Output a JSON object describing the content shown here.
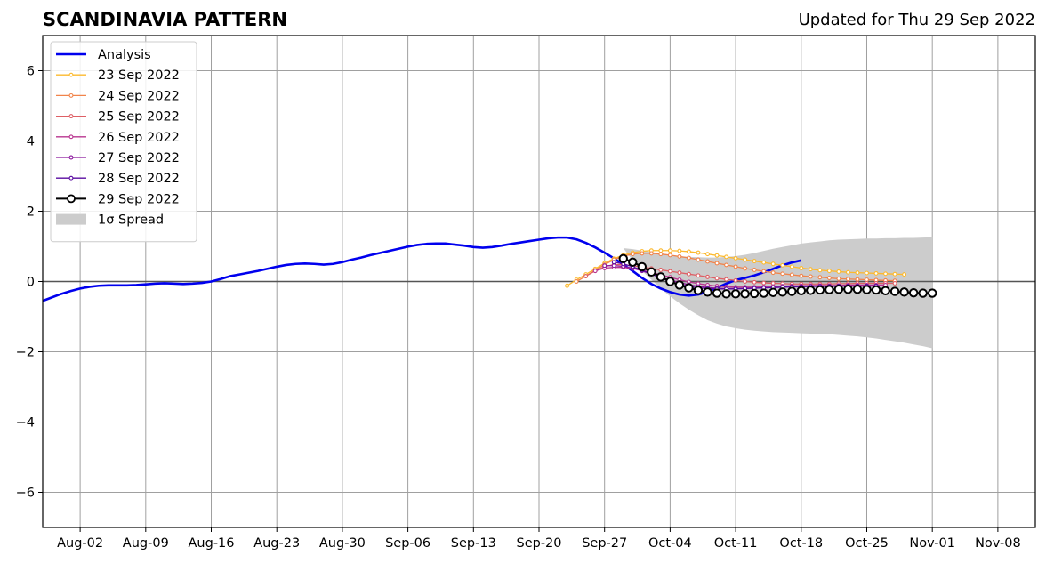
{
  "header": {
    "title": "SCANDINAVIA PATTERN",
    "updated": "Updated for Thu 29 Sep 2022"
  },
  "chart_data": {
    "type": "line",
    "title": "SCANDINAVIA PATTERN",
    "subtitle": "Updated for Thu 29 Sep 2022",
    "xlabel": "",
    "ylabel": "",
    "x_axis": {
      "min": "2022-07-29",
      "max": "2022-11-12",
      "ticks": [
        {
          "date": "2022-08-02",
          "label": "Aug-02"
        },
        {
          "date": "2022-08-09",
          "label": "Aug-09"
        },
        {
          "date": "2022-08-16",
          "label": "Aug-16"
        },
        {
          "date": "2022-08-23",
          "label": "Aug-23"
        },
        {
          "date": "2022-08-30",
          "label": "Aug-30"
        },
        {
          "date": "2022-09-06",
          "label": "Sep-06"
        },
        {
          "date": "2022-09-13",
          "label": "Sep-13"
        },
        {
          "date": "2022-09-20",
          "label": "Sep-20"
        },
        {
          "date": "2022-09-27",
          "label": "Sep-27"
        },
        {
          "date": "2022-10-04",
          "label": "Oct-04"
        },
        {
          "date": "2022-10-11",
          "label": "Oct-11"
        },
        {
          "date": "2022-10-18",
          "label": "Oct-18"
        },
        {
          "date": "2022-10-25",
          "label": "Oct-25"
        },
        {
          "date": "2022-11-01",
          "label": "Nov-01"
        },
        {
          "date": "2022-11-08",
          "label": "Nov-08"
        }
      ]
    },
    "y_axis": {
      "min": -7,
      "max": 7,
      "ticks": [
        {
          "value": -6,
          "label": "−6"
        },
        {
          "value": -4,
          "label": "−4"
        },
        {
          "value": -2,
          "label": "−2"
        },
        {
          "value": 0,
          "label": "0"
        },
        {
          "value": 2,
          "label": "2"
        },
        {
          "value": 4,
          "label": "4"
        },
        {
          "value": 6,
          "label": "6"
        }
      ]
    },
    "grid": true,
    "legend_position": "top-left",
    "analysis": {
      "name": "Analysis",
      "color": "#0000ee",
      "start": "2022-07-29",
      "values": [
        -0.55,
        -0.45,
        -0.35,
        -0.27,
        -0.2,
        -0.15,
        -0.12,
        -0.11,
        -0.11,
        -0.11,
        -0.1,
        -0.08,
        -0.06,
        -0.05,
        -0.06,
        -0.07,
        -0.06,
        -0.04,
        0.0,
        0.07,
        0.15,
        0.2,
        0.25,
        0.3,
        0.36,
        0.42,
        0.47,
        0.5,
        0.51,
        0.5,
        0.48,
        0.5,
        0.55,
        0.62,
        0.68,
        0.75,
        0.81,
        0.87,
        0.93,
        0.99,
        1.04,
        1.07,
        1.08,
        1.08,
        1.05,
        1.02,
        0.98,
        0.96,
        0.98,
        1.02,
        1.07,
        1.11,
        1.15,
        1.19,
        1.23,
        1.25,
        1.25,
        1.2,
        1.1,
        0.97,
        0.82,
        0.66,
        0.48,
        0.3,
        0.1,
        -0.07,
        -0.2,
        -0.3,
        -0.37,
        -0.4,
        -0.37,
        -0.29,
        -0.18,
        -0.06,
        0.04,
        0.1,
        0.17,
        0.26,
        0.36,
        0.46,
        0.54,
        0.6
      ]
    },
    "forecasts": [
      {
        "name": "23 Sep 2022",
        "color": "#fcb92d",
        "start": "2022-09-23",
        "values": [
          -0.12,
          0.05,
          0.2,
          0.36,
          0.52,
          0.65,
          0.75,
          0.82,
          0.86,
          0.88,
          0.88,
          0.88,
          0.87,
          0.85,
          0.82,
          0.78,
          0.74,
          0.7,
          0.66,
          0.62,
          0.58,
          0.54,
          0.5,
          0.46,
          0.42,
          0.38,
          0.35,
          0.32,
          0.3,
          0.28,
          0.26,
          0.25,
          0.24,
          0.23,
          0.22,
          0.21,
          0.2
        ]
      },
      {
        "name": "24 Sep 2022",
        "color": "#f1844b",
        "start": "2022-09-24",
        "values": [
          0.0,
          0.15,
          0.32,
          0.48,
          0.62,
          0.72,
          0.78,
          0.8,
          0.8,
          0.78,
          0.75,
          0.71,
          0.67,
          0.62,
          0.57,
          0.52,
          0.47,
          0.42,
          0.37,
          0.33,
          0.29,
          0.25,
          0.22,
          0.19,
          0.16,
          0.14,
          0.12,
          0.1,
          0.08,
          0.07,
          0.06,
          0.05,
          0.04,
          0.03,
          0.02
        ]
      },
      {
        "name": "25 Sep 2022",
        "color": "#de5f65",
        "start": "2022-09-25",
        "values": [
          0.15,
          0.3,
          0.42,
          0.48,
          0.48,
          0.45,
          0.41,
          0.37,
          0.33,
          0.29,
          0.25,
          0.21,
          0.17,
          0.13,
          0.09,
          0.06,
          0.03,
          0.0,
          -0.02,
          -0.04,
          -0.05,
          -0.06,
          -0.07,
          -0.07,
          -0.07,
          -0.07,
          -0.07,
          -0.06,
          -0.06,
          -0.05,
          -0.05,
          -0.05,
          -0.05,
          -0.05
        ]
      },
      {
        "name": "26 Sep 2022",
        "color": "#b8348f",
        "start": "2022-09-26",
        "values": [
          0.3,
          0.38,
          0.4,
          0.4,
          0.37,
          0.32,
          0.26,
          0.19,
          0.12,
          0.05,
          -0.01,
          -0.06,
          -0.1,
          -0.13,
          -0.15,
          -0.16,
          -0.16,
          -0.16,
          -0.15,
          -0.14,
          -0.13,
          -0.12,
          -0.12,
          -0.11,
          -0.11,
          -0.11,
          -0.11,
          -0.1,
          -0.1,
          -0.1,
          -0.1,
          -0.1
        ]
      },
      {
        "name": "27 Sep 2022",
        "color": "#8b169c",
        "start": "2022-09-27",
        "values": [
          0.45,
          0.45,
          0.43,
          0.38,
          0.3,
          0.21,
          0.12,
          0.04,
          -0.03,
          -0.09,
          -0.14,
          -0.17,
          -0.19,
          -0.2,
          -0.2,
          -0.2,
          -0.19,
          -0.18,
          -0.17,
          -0.16,
          -0.15,
          -0.14,
          -0.14,
          -0.13,
          -0.13,
          -0.12,
          -0.12,
          -0.12,
          -0.12,
          -0.12
        ]
      },
      {
        "name": "28 Sep 2022",
        "color": "#5a0ba0",
        "start": "2022-09-28",
        "values": [
          0.55,
          0.5,
          0.42,
          0.32,
          0.21,
          0.1,
          0.0,
          -0.08,
          -0.14,
          -0.18,
          -0.2,
          -0.21,
          -0.21,
          -0.21,
          -0.2,
          -0.19,
          -0.18,
          -0.17,
          -0.16,
          -0.15,
          -0.15,
          -0.14,
          -0.14,
          -0.14,
          -0.13,
          -0.13,
          -0.13,
          -0.13,
          -0.13
        ]
      },
      {
        "name": "29 Sep 2022",
        "color": "#000000",
        "start": "2022-09-29",
        "values": [
          0.65,
          0.55,
          0.42,
          0.27,
          0.13,
          0.0,
          -0.1,
          -0.18,
          -0.25,
          -0.3,
          -0.33,
          -0.35,
          -0.35,
          -0.35,
          -0.34,
          -0.33,
          -0.31,
          -0.3,
          -0.28,
          -0.26,
          -0.25,
          -0.24,
          -0.23,
          -0.22,
          -0.22,
          -0.22,
          -0.23,
          -0.24,
          -0.26,
          -0.28,
          -0.3,
          -0.32,
          -0.33,
          -0.33
        ]
      }
    ],
    "spread": {
      "name": "1σ Spread",
      "color": "#cccccc",
      "start": "2022-09-29",
      "upper": [
        0.95,
        0.92,
        0.88,
        0.84,
        0.8,
        0.76,
        0.72,
        0.7,
        0.69,
        0.68,
        0.68,
        0.7,
        0.72,
        0.76,
        0.81,
        0.87,
        0.93,
        0.98,
        1.03,
        1.08,
        1.11,
        1.14,
        1.17,
        1.19,
        1.2,
        1.21,
        1.22,
        1.22,
        1.23,
        1.23,
        1.24,
        1.24,
        1.25,
        1.26
      ],
      "lower": [
        0.95,
        0.6,
        0.3,
        0.05,
        -0.2,
        -0.42,
        -0.62,
        -0.8,
        -0.96,
        -1.1,
        -1.2,
        -1.28,
        -1.33,
        -1.37,
        -1.4,
        -1.42,
        -1.44,
        -1.45,
        -1.46,
        -1.47,
        -1.48,
        -1.49,
        -1.5,
        -1.52,
        -1.54,
        -1.56,
        -1.59,
        -1.62,
        -1.66,
        -1.7,
        -1.74,
        -1.79,
        -1.84,
        -1.9
      ]
    },
    "legend": [
      {
        "label": "Analysis",
        "color": "#0000ee",
        "kind": "line-thick"
      },
      {
        "label": "23 Sep 2022",
        "color": "#fcb92d",
        "kind": "line-marker"
      },
      {
        "label": "24 Sep 2022",
        "color": "#f1844b",
        "kind": "line-marker"
      },
      {
        "label": "25 Sep 2022",
        "color": "#de5f65",
        "kind": "line-marker"
      },
      {
        "label": "26 Sep 2022",
        "color": "#b8348f",
        "kind": "line-marker"
      },
      {
        "label": "27 Sep 2022",
        "color": "#8b169c",
        "kind": "line-marker"
      },
      {
        "label": "28 Sep 2022",
        "color": "#5a0ba0",
        "kind": "line-marker"
      },
      {
        "label": "29 Sep 2022",
        "color": "#000000",
        "kind": "line-open-marker"
      },
      {
        "label": "1σ Spread",
        "color": "#cccccc",
        "kind": "patch"
      }
    ]
  }
}
